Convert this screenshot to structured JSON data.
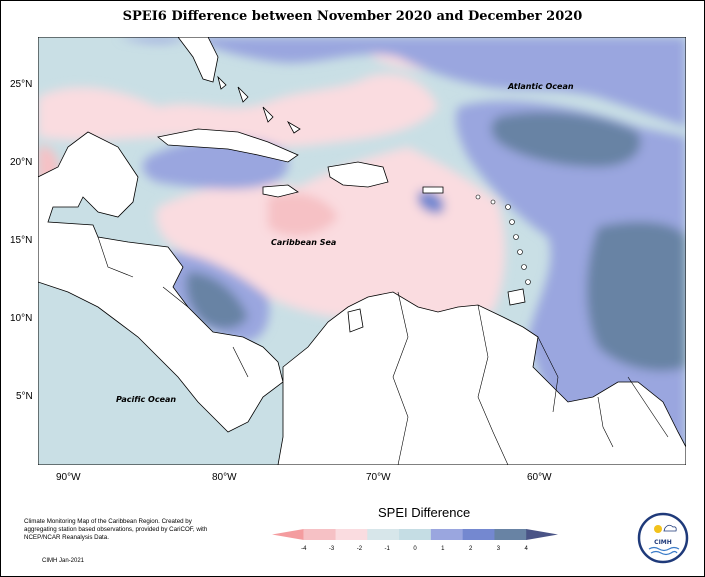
{
  "title": "SPEI6 Difference between November 2020 and December 2020",
  "map": {
    "lon_ticks": [
      "90°W",
      "80°W",
      "70°W",
      "60°W"
    ],
    "lat_ticks": [
      "25°N",
      "20°N",
      "15°N",
      "10°N",
      "5°N"
    ],
    "labels": {
      "atlantic": "Atlantic Ocean",
      "caribbean": "Caribbean Sea",
      "pacific": "Pacific Ocean"
    }
  },
  "legend": {
    "title": "SPEI Difference",
    "ticks": [
      "-4",
      "-3",
      "-2",
      "-1",
      "0",
      "1",
      "2",
      "3",
      "4"
    ],
    "colors": [
      "#f49c9f",
      "#f6c1c5",
      "#fadce0",
      "#d7e6ea",
      "#c5dde4",
      "#9aa6df",
      "#7488d0",
      "#6883a4",
      "#4a5486"
    ]
  },
  "footer": {
    "note": "Climate Monitoring Map of the Caribbean Region. Created by aggregating station based observations, provided by CariCOF, with NCEP/NCAR Reanalysis Data.",
    "credit": "CIMH Jan-2021"
  },
  "logo": {
    "text": "CIMH",
    "colors": {
      "ring": "#1f3a7a",
      "sun": "#f2c21b"
    }
  }
}
